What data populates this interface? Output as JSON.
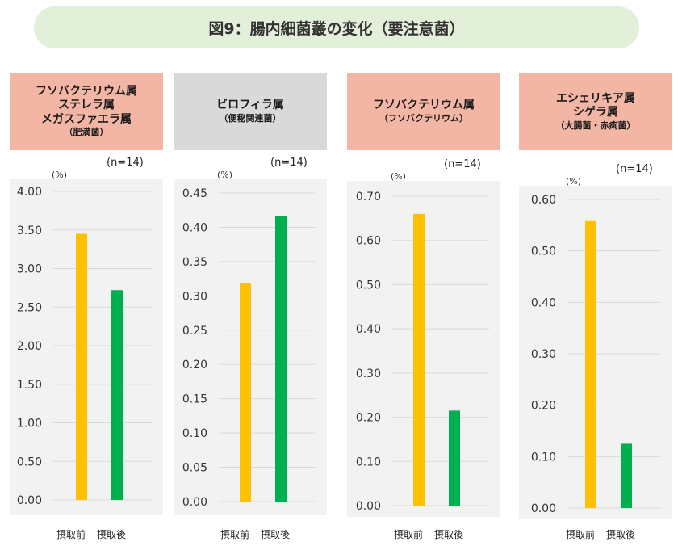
{
  "title": "図9：腸内細菌叢の変化（要注意菌）",
  "colors": {
    "before": "#ffc000",
    "after": "#00b050",
    "grid": "#d9d9d9",
    "plot_bg": "#f2f2f2"
  },
  "chart_data": [
    {
      "type": "bar",
      "header_lines": [
        "フソバクテリウム属",
        "ステレラ属",
        "メガスファエラ属"
      ],
      "header_sub": "（肥満菌）",
      "header_bg": "#f4b6a4",
      "n_label": "(n=14)",
      "unit": "(%)",
      "categories": [
        "摂取前",
        "摂取後"
      ],
      "values": [
        3.45,
        2.72
      ],
      "ylim": [
        0,
        4.0
      ],
      "ticks": [
        "0.00",
        "0.50",
        "1.00",
        "1.50",
        "2.00",
        "2.50",
        "3.00",
        "3.50",
        "4.00"
      ]
    },
    {
      "type": "bar",
      "header_lines": [
        "ビロフィラ属"
      ],
      "header_sub": "（便秘関連菌）",
      "header_bg": "#d9d9d9",
      "n_label": "(n=14)",
      "unit": "(%)",
      "categories": [
        "摂取前",
        "摂取後"
      ],
      "values": [
        0.318,
        0.416
      ],
      "ylim": [
        0,
        0.45
      ],
      "ticks": [
        "0.00",
        "0.05",
        "0.10",
        "0.15",
        "0.20",
        "0.25",
        "0.30",
        "0.35",
        "0.40",
        "0.45"
      ]
    },
    {
      "type": "bar",
      "header_lines": [
        "フソバクテリウム属"
      ],
      "header_sub": "（フソバクテリウム）",
      "header_bg": "#f4b6a4",
      "n_label": "(n=14)",
      "unit": "(%)",
      "categories": [
        "摂取前",
        "摂取後"
      ],
      "values": [
        0.66,
        0.215
      ],
      "ylim": [
        0,
        0.7
      ],
      "ticks": [
        "0.00",
        "0.10",
        "0.20",
        "0.30",
        "0.40",
        "0.50",
        "0.60",
        "0.70"
      ]
    },
    {
      "type": "bar",
      "header_lines": [
        "エシェリキア属",
        "シゲラ属"
      ],
      "header_sub": "（大腸菌・赤痢菌）",
      "header_bg": "#f4b6a4",
      "n_label": "(n=14)",
      "unit": "(%)",
      "categories": [
        "摂取前",
        "摂取後"
      ],
      "values": [
        0.558,
        0.125
      ],
      "ylim": [
        0,
        0.6
      ],
      "ticks": [
        "0.00",
        "0.10",
        "0.20",
        "0.30",
        "0.40",
        "0.50",
        "0.60"
      ]
    }
  ]
}
